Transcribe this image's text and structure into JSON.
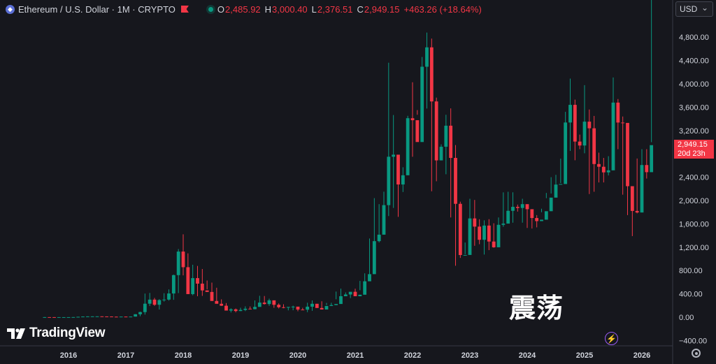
{
  "header": {
    "symbol_title": "Ethereum / U.S. Dollar · 1M · CRYPTO",
    "open_label": "O",
    "open_value": "2,485.92",
    "high_label": "H",
    "high_value": "3,000.40",
    "low_label": "L",
    "low_value": "2,376.51",
    "close_label": "C",
    "close_value": "2,949.15",
    "change_value": "+463.26 (+18.64%)"
  },
  "currency_select": "USD",
  "price_tag": {
    "price": "2,949.15",
    "countdown": "20d 23h"
  },
  "logo_text": "TradingView",
  "overlay_text": "震荡",
  "colors": {
    "up": "#089981",
    "down": "#f23645",
    "background": "#16171d",
    "axis_text": "#d1d4dc"
  },
  "icons": [
    "ethereum-icon",
    "flag-icon",
    "status-dot-icon",
    "lightning-icon",
    "settings-icon"
  ],
  "chart_data": {
    "type": "candlestick",
    "interval": "1M",
    "ylim": [
      -400,
      4900
    ],
    "y_ticks": [
      -400,
      0,
      400,
      800,
      1200,
      1600,
      2000,
      2400,
      2800,
      3200,
      3600,
      4000,
      4400,
      4800
    ],
    "y_tick_labels": [
      "−400.00",
      "0.00",
      "400.00",
      "800.00",
      "1,200.00",
      "1,600.00",
      "2,000.00",
      "2,400.00",
      "2,800.00",
      "3,200.00",
      "3,600.00",
      "4,000.00",
      "4,400.00",
      "4,800.00"
    ],
    "x_ticks": [
      "2016",
      "2017",
      "2018",
      "2019",
      "2020",
      "2021",
      "2022",
      "2023",
      "2024",
      "2025",
      "2026"
    ],
    "start_month": "2015-08",
    "closes": [
      1.3,
      1.0,
      0.9,
      0.9,
      0.9,
      1.0,
      2.2,
      6.5,
      11.2,
      13.4,
      14.0,
      14.2,
      12.4,
      11.8,
      8.7,
      8.2,
      10.2,
      8.2,
      10.5,
      50.4,
      87.3,
      231.2,
      301.2,
      213.3,
      293.5,
      302.0,
      406.4,
      721.1,
      1124.8,
      856.9,
      395.6,
      669.8,
      575.2,
      459.3,
      432.3,
      277.9,
      230.1,
      196.5,
      113.5,
      134.8,
      105.6,
      124.3,
      145.4,
      137.4,
      176.3,
      250.3,
      225.3,
      289.1,
      212.6,
      170.9,
      163.1,
      176.0,
      181.0,
      130.6,
      129.0,
      180.3,
      230.1,
      157.5,
      131.6,
      192.4,
      207.5,
      226.4,
      359.6,
      389.3,
      435.3,
      359.2,
      385.2,
      615.5,
      737.8,
      1303.5,
      1414.5,
      1920.8,
      2750.6,
      2785.8,
      2275.1,
      2432.6,
      3411.1,
      3376.6,
      3002.5,
      4293.2,
      4625.5,
      3698.4,
      2687.8,
      2921.5,
      3282.7,
      2730.1,
      1943.2,
      1065.6,
      1066.8,
      1693.1,
      1552.7,
      1327.0,
      1570.5,
      1296.9,
      1198.3,
      1583.6,
      1604.2,
      1823.5,
      1891.5,
      1872.1,
      1937.6,
      1851.1,
      1700.1,
      1646.9,
      1671.5,
      1816.7,
      2049.6,
      2273.1,
      2282.6,
      3337.3,
      3640.0,
      3010.4,
      2943.0,
      3351.8,
      3238.0,
      2625.3,
      2578.7,
      2482.4,
      2517.1,
      3678.4,
      3336.6,
      3330.2,
      2245.6,
      1821.4,
      1794.5,
      2608.3,
      2485.9,
      2949.2
    ],
    "highs": [
      3.0,
      1.6,
      1.2,
      1.3,
      1.2,
      1.3,
      2.9,
      8.3,
      12.8,
      15.0,
      14.9,
      14.9,
      14.5,
      13.2,
      13.0,
      11.5,
      11.0,
      11.5,
      11.3,
      52.0,
      94.0,
      405.0,
      416.0,
      331.0,
      309.0,
      411.0,
      476.0,
      730.0,
      1168.0,
      1421.0,
      1094.0,
      899.0,
      878.0,
      826.0,
      629.0,
      593.0,
      505.0,
      306.0,
      242.0,
      153.0,
      149.0,
      161.0,
      186.0,
      184.0,
      288.0,
      367.0,
      363.0,
      317.0,
      221.0,
      236.0,
      222.0,
      174.0,
      197.0,
      155.0,
      161.0,
      248.0,
      287.0,
      229.0,
      273.0,
      244.0,
      247.0,
      439.0,
      489.0,
      424.0,
      415.0,
      488.0,
      622.0,
      752.0,
      1349.0,
      2041.0,
      1938.0,
      2151.0,
      4362.0,
      3466.0,
      2410.0,
      2570.0,
      3452.0,
      4027.0,
      3470.0,
      4460.0,
      4878.0,
      4775.0,
      3764.0,
      2962.0,
      3470.0,
      3580.0,
      2950.0,
      1980.0,
      1280.0,
      2030.0,
      2010.0,
      1679.0,
      1660.0,
      1680.0,
      1610.0,
      1710.0,
      2140.0,
      2150.0,
      2140.0,
      1930.0,
      2030.0,
      1880.0,
      1760.0,
      1750.0,
      1860.0,
      2130.0,
      2400.0,
      2440.0,
      2718.0,
      3520.0,
      4090.0,
      3730.0,
      3130.0,
      3977.0,
      3560.0,
      3450.0,
      2820.0,
      2730.0,
      2760.0,
      4110.0,
      3740.0,
      3440.0,
      2860.0,
      1960.0,
      2720.0,
      2880.0,
      2880.0,
      3000.4
    ],
    "lows": [
      0.4,
      0.6,
      0.7,
      0.7,
      0.8,
      0.9,
      0.9,
      2.1,
      6.5,
      8.1,
      11.2,
      11.0,
      10.9,
      8.6,
      7.5,
      7.0,
      8.0,
      7.5,
      7.8,
      9.8,
      16.0,
      44.5,
      191.0,
      195.0,
      132.0,
      267.0,
      284.0,
      298.0,
      413.0,
      717.0,
      563.0,
      375.0,
      360.0,
      365.0,
      477.0,
      418.0,
      243.0,
      193.0,
      186.0,
      81.0,
      83.0,
      105.0,
      104.0,
      138.0,
      134.0,
      182.0,
      217.0,
      195.0,
      161.0,
      150.0,
      153.0,
      117.0,
      119.0,
      102.0,
      128.0,
      86.0,
      110.0,
      174.0,
      152.0,
      208.0,
      191.0,
      307.0,
      243.0,
      381.0,
      327.0,
      367.0,
      462.0,
      552.0,
      718.0,
      1016.0,
      1281.0,
      1718.0,
      1733.0,
      1873.0,
      1720.0,
      2146.0,
      3009.0,
      2750.0,
      3550.0,
      3660.0,
      3577.0,
      2159.0,
      2330.0,
      2690.0,
      2450.0,
      1709.0,
      881.0,
      1016.0,
      1080.0,
      1490.0,
      1224.0,
      1251.0,
      1074.0,
      1150.0,
      1190.0,
      1370.0,
      1550.0,
      1710.0,
      1620.0,
      1810.0,
      1620.0,
      1530.0,
      1520.0,
      1540.0,
      1800.0,
      2040.0,
      2120.0,
      2166.0,
      2300.0,
      3060.0,
      2850.0,
      2690.0,
      2880.0,
      2810.0,
      2111.0,
      2150.0,
      2310.0,
      2310.0,
      2430.0,
      3100.0,
      2880.0,
      2100.0,
      1750.0,
      1390.0,
      1780.0,
      2370.0,
      2376.5
    ]
  }
}
